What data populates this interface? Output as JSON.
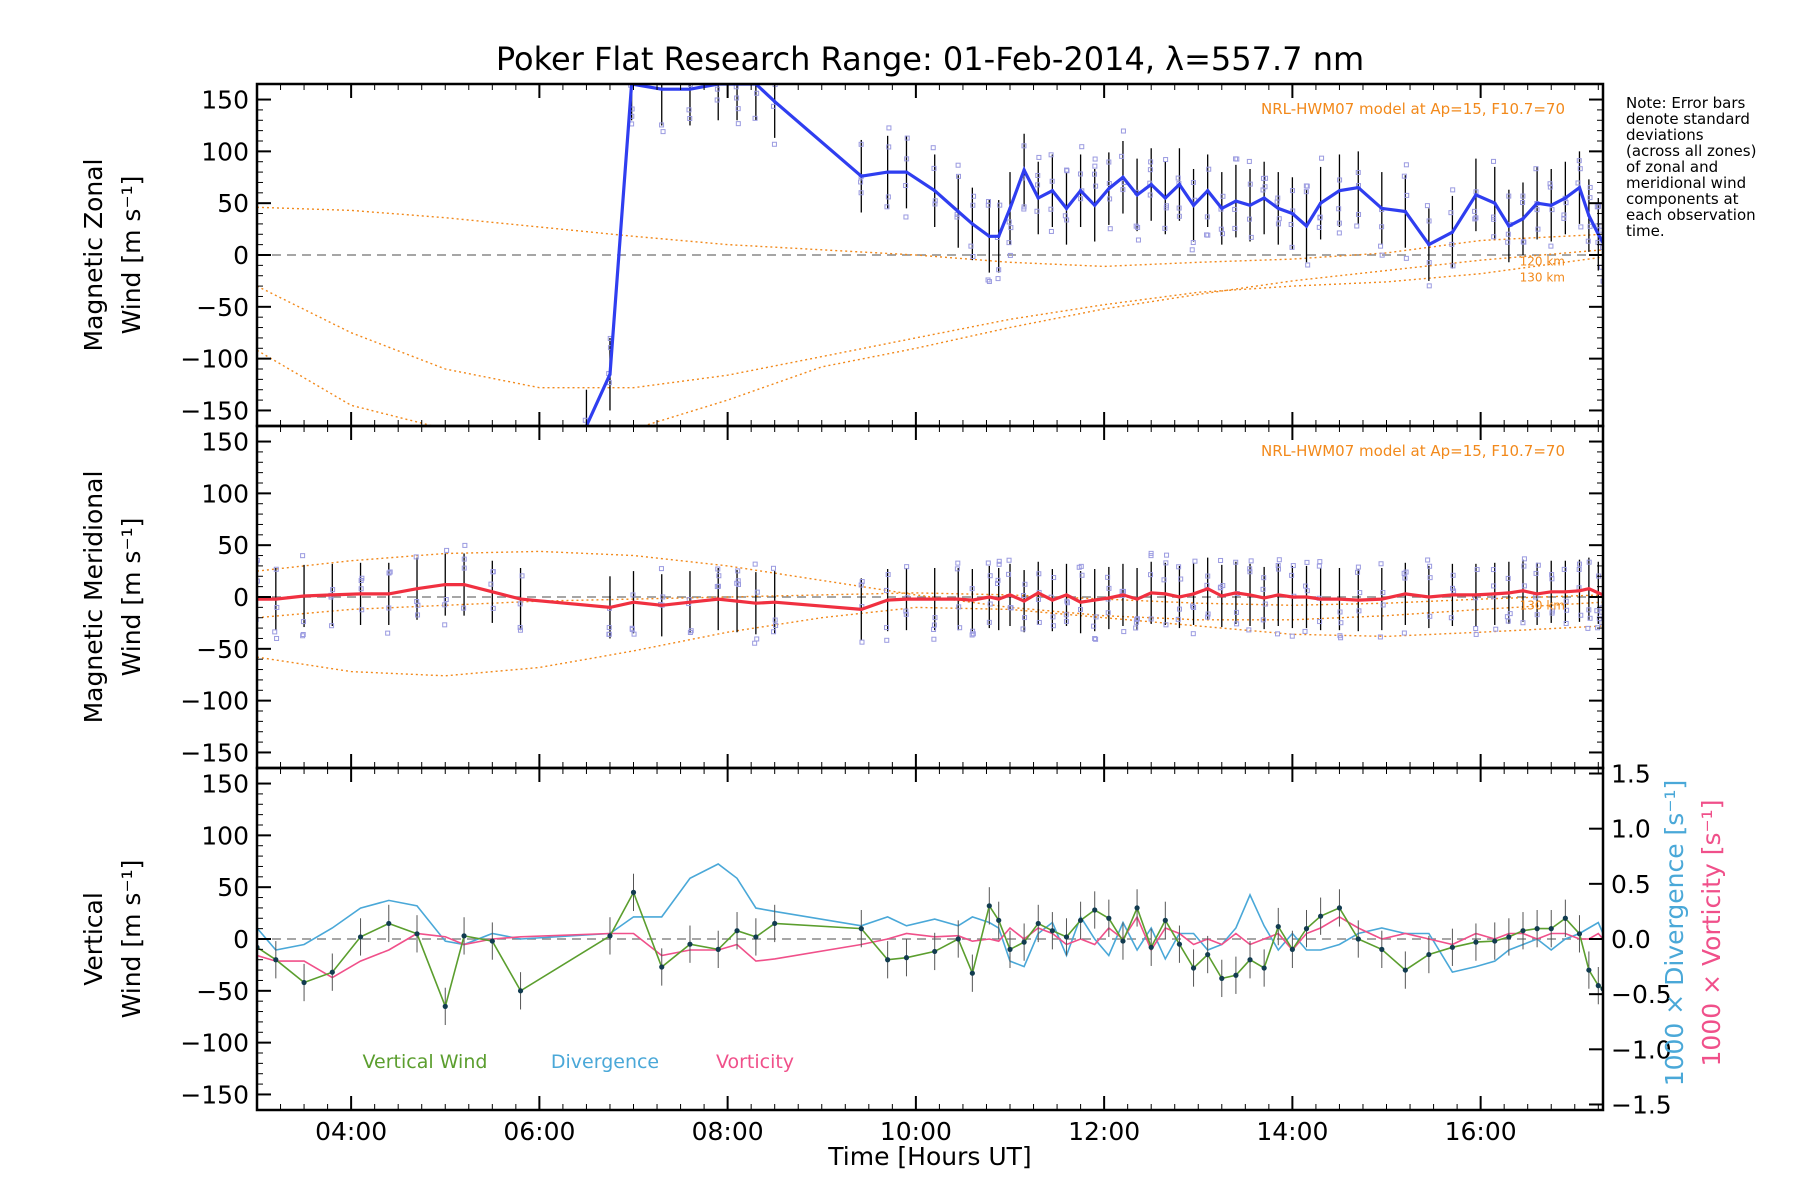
{
  "title": "Poker Flat Research Range: 01-Feb-2014, λ=557.7 nm",
  "note_lines": [
    "Note: Error bars",
    "denote standard",
    "deviations",
    "(across all zones)",
    "of zonal and",
    "meridional wind",
    "components at",
    "each observation",
    "time."
  ],
  "colors": {
    "zonal": "#2f3ef0",
    "meridional": "#f03040",
    "model": "#f2891b",
    "vertical": "#5b9e2e",
    "divergence": "#4aa8d8",
    "vorticity": "#f0508a",
    "scatter": "#9a9ae0",
    "errorbar": "#000000",
    "zero_line": "#888888"
  },
  "x_axis": {
    "label": "Time [Hours UT]",
    "range_hours": [
      3.0,
      17.3
    ],
    "ticks": [
      4,
      6,
      8,
      10,
      12,
      14,
      16
    ],
    "tick_labels": [
      "04:00",
      "06:00",
      "08:00",
      "10:00",
      "12:00",
      "14:00",
      "16:00"
    ]
  },
  "chart_data": [
    {
      "type": "line",
      "panel": "zonal",
      "ylabel_line1": "Magnetic Zonal",
      "ylabel_line2": "Wind [m s⁻¹]",
      "ylim": [
        -165,
        165
      ],
      "y_ticks": [
        -150,
        -100,
        -50,
        0,
        50,
        100,
        150
      ],
      "y_tick_labels": [
        "−150",
        "−100",
        "−50",
        "0",
        "50",
        "100",
        "150"
      ],
      "model_label": "NRL-HWM07 model at Ap=15, F10.7=70",
      "model_km_labels": [
        "120 km",
        "130 km"
      ],
      "series": [
        {
          "x": [
            6.5,
            6.75,
            6.98,
            7.3,
            7.6,
            7.9,
            8.1,
            8.3,
            8.5,
            9.42,
            9.7,
            9.9,
            10.2,
            10.45,
            10.6,
            10.78,
            10.88,
            11.0,
            11.15,
            11.3,
            11.45,
            11.6,
            11.75,
            11.9,
            12.05,
            12.2,
            12.35,
            12.5,
            12.65,
            12.8,
            12.95,
            13.1,
            13.25,
            13.4,
            13.55,
            13.7,
            13.85,
            14.0,
            14.15,
            14.3,
            14.5,
            14.7,
            14.95,
            15.2,
            15.45,
            15.7,
            15.95,
            16.15,
            16.3,
            16.45,
            16.6,
            16.75,
            16.9,
            17.05,
            17.15,
            17.25,
            17.3
          ],
          "y": [
            -165,
            -115,
            165,
            160,
            160,
            165,
            165,
            165,
            148,
            76,
            80,
            80,
            62,
            42,
            30,
            18,
            18,
            45,
            82,
            55,
            62,
            45,
            62,
            48,
            64,
            75,
            58,
            68,
            55,
            68,
            48,
            62,
            45,
            52,
            48,
            55,
            45,
            40,
            28,
            50,
            62,
            65,
            45,
            42,
            10,
            22,
            58,
            50,
            28,
            35,
            50,
            48,
            55,
            65,
            38,
            20,
            12
          ]
        }
      ],
      "model_curves": [
        {
          "x": [
            3,
            4,
            5,
            6,
            7,
            8,
            9,
            10,
            11,
            12,
            13,
            14,
            15,
            16,
            17.3
          ],
          "y": [
            46,
            43,
            36,
            27,
            18,
            10,
            5,
            0,
            -7,
            -11,
            -7,
            -4,
            2,
            14,
            20
          ]
        },
        {
          "x": [
            3,
            4,
            5,
            6,
            7,
            8,
            9,
            10,
            11,
            12,
            13,
            14,
            15,
            16,
            17.3
          ],
          "y": [
            -30,
            -75,
            -110,
            -128,
            -128,
            -116,
            -98,
            -80,
            -62,
            -48,
            -36,
            -30,
            -26,
            -18,
            -2
          ]
        },
        {
          "x": [
            3,
            4,
            5,
            6,
            7,
            8,
            9,
            10,
            11,
            12,
            13,
            14,
            15,
            16,
            17.3
          ],
          "y": [
            -92,
            -145,
            -168,
            -175,
            -168,
            -140,
            -108,
            -90,
            -70,
            -52,
            -38,
            -25,
            -15,
            -5,
            5
          ]
        }
      ]
    },
    {
      "type": "line",
      "panel": "meridional",
      "ylabel_line1": "Magnetic Meridional",
      "ylabel_line2": "Wind [m s⁻¹]",
      "ylim": [
        -165,
        165
      ],
      "y_ticks": [
        -150,
        -100,
        -50,
        0,
        50,
        100,
        150
      ],
      "y_tick_labels": [
        "−150",
        "−100",
        "−50",
        "0",
        "50",
        "100",
        "150"
      ],
      "model_label": "NRL-HWM07 model at Ap=15, F10.7=70",
      "model_km_labels": [
        "130 km"
      ],
      "series": [
        {
          "x": [
            3.0,
            3.2,
            3.5,
            3.8,
            4.1,
            4.4,
            4.7,
            5.0,
            5.2,
            5.5,
            5.8,
            6.75,
            7.0,
            7.3,
            7.6,
            7.9,
            8.1,
            8.3,
            8.5,
            9.42,
            9.7,
            9.9,
            10.2,
            10.45,
            10.6,
            10.78,
            10.88,
            11.0,
            11.15,
            11.3,
            11.45,
            11.6,
            11.75,
            11.9,
            12.05,
            12.2,
            12.35,
            12.5,
            12.65,
            12.8,
            12.95,
            13.1,
            13.25,
            13.4,
            13.55,
            13.7,
            13.85,
            14.0,
            14.15,
            14.3,
            14.5,
            14.7,
            14.95,
            15.2,
            15.45,
            15.7,
            15.95,
            16.15,
            16.3,
            16.45,
            16.6,
            16.75,
            16.9,
            17.05,
            17.15,
            17.25,
            17.3
          ],
          "y": [
            -2,
            -2,
            1,
            2,
            3,
            3,
            8,
            12,
            12,
            5,
            -2,
            -10,
            -5,
            -8,
            -5,
            -2,
            -4,
            -6,
            -5,
            -12,
            -3,
            -2,
            -2,
            -2,
            -3,
            0,
            -2,
            2,
            -4,
            4,
            -3,
            2,
            -5,
            -3,
            -1,
            2,
            -2,
            4,
            3,
            0,
            3,
            8,
            1,
            4,
            2,
            -1,
            2,
            0,
            0,
            -2,
            -2,
            -3,
            -2,
            3,
            0,
            2,
            2,
            3,
            4,
            6,
            3,
            5,
            5,
            6,
            8,
            4,
            2
          ]
        }
      ],
      "model_curves": [
        {
          "x": [
            3,
            4,
            5,
            6,
            7,
            8,
            9,
            10,
            11,
            12,
            13,
            14,
            15,
            16,
            17.3
          ],
          "y": [
            25,
            35,
            42,
            44,
            40,
            30,
            16,
            2,
            -10,
            -18,
            -22,
            -22,
            -18,
            -12,
            -5
          ]
        },
        {
          "x": [
            3,
            4,
            5,
            6,
            7,
            8,
            9,
            10,
            11,
            12,
            13,
            14,
            15,
            16,
            17.3
          ],
          "y": [
            -20,
            -12,
            -8,
            -4,
            -2,
            0,
            2,
            4,
            2,
            -2,
            -6,
            -8,
            -6,
            -2,
            2
          ]
        },
        {
          "x": [
            3,
            4,
            5,
            6,
            7,
            8,
            9,
            10,
            11,
            12,
            13,
            14,
            15,
            16,
            17.3
          ],
          "y": [
            -58,
            -72,
            -76,
            -68,
            -52,
            -34,
            -20,
            -10,
            -12,
            -20,
            -28,
            -36,
            -38,
            -34,
            -28
          ]
        }
      ]
    },
    {
      "type": "line",
      "panel": "vertical",
      "ylabel_line1": "Vertical",
      "ylabel_line2": "Wind [m s⁻¹]",
      "ylim": [
        -165,
        165
      ],
      "y_ticks": [
        -150,
        -100,
        -50,
        0,
        50,
        100,
        150
      ],
      "y_tick_labels": [
        "−150",
        "−100",
        "−50",
        "0",
        "50",
        "100",
        "150"
      ],
      "y2_label_div": "1000 × Divergence [s⁻¹]",
      "y2_label_vort": "1000 × Vorticity [s⁻¹]",
      "y2lim": [
        -1.55,
        1.55
      ],
      "y2_ticks": [
        -1.5,
        -1.0,
        -0.5,
        0.0,
        0.5,
        1.0,
        1.5
      ],
      "y2_tick_labels": [
        "−1.5",
        "−1.0",
        "−0.5",
        "0.0",
        "0.5",
        "1.0",
        "1.5"
      ],
      "legend": [
        "Vertical Wind",
        "Divergence",
        "Vorticity"
      ],
      "series": [
        {
          "name": "Vertical Wind",
          "x": [
            3.0,
            3.2,
            3.5,
            3.8,
            4.1,
            4.4,
            4.7,
            5.0,
            5.2,
            5.5,
            5.8,
            6.75,
            7.0,
            7.3,
            7.6,
            7.9,
            8.1,
            8.3,
            8.5,
            9.42,
            9.7,
            9.9,
            10.2,
            10.45,
            10.6,
            10.78,
            10.88,
            11.0,
            11.15,
            11.3,
            11.45,
            11.6,
            11.75,
            11.9,
            12.05,
            12.2,
            12.35,
            12.5,
            12.65,
            12.8,
            12.95,
            13.1,
            13.25,
            13.4,
            13.55,
            13.7,
            13.85,
            14.0,
            14.15,
            14.3,
            14.5,
            14.7,
            14.95,
            15.2,
            15.45,
            15.7,
            15.95,
            16.15,
            16.3,
            16.45,
            16.6,
            16.75,
            16.9,
            17.05,
            17.15,
            17.25,
            17.3
          ],
          "y": [
            -8,
            -20,
            -42,
            -32,
            2,
            15,
            5,
            -65,
            3,
            -2,
            -50,
            3,
            45,
            -27,
            -5,
            -10,
            8,
            2,
            15,
            10,
            -20,
            -18,
            -12,
            0,
            -33,
            32,
            18,
            -10,
            -3,
            15,
            8,
            2,
            18,
            28,
            20,
            -2,
            30,
            -8,
            18,
            -5,
            -28,
            -15,
            -38,
            -35,
            -20,
            -28,
            12,
            -10,
            10,
            22,
            30,
            0,
            -10,
            -30,
            -15,
            -8,
            -3,
            -2,
            2,
            8,
            10,
            10,
            20,
            5,
            -30,
            -45,
            -48
          ]
        },
        {
          "name": "Divergence",
          "x": [
            3.0,
            3.2,
            3.5,
            3.8,
            4.1,
            4.4,
            4.7,
            5.0,
            5.2,
            5.5,
            5.8,
            6.75,
            7.0,
            7.3,
            7.6,
            7.9,
            8.1,
            8.3,
            8.5,
            9.42,
            9.7,
            9.9,
            10.2,
            10.45,
            10.6,
            10.78,
            10.88,
            11.0,
            11.15,
            11.3,
            11.45,
            11.6,
            11.75,
            11.9,
            12.05,
            12.2,
            12.35,
            12.5,
            12.65,
            12.8,
            12.95,
            13.1,
            13.25,
            13.4,
            13.55,
            13.7,
            13.85,
            14.0,
            14.15,
            14.3,
            14.5,
            14.7,
            14.95,
            15.2,
            15.45,
            15.7,
            15.95,
            16.15,
            16.3,
            16.45,
            16.6,
            16.75,
            16.9,
            17.05,
            17.15,
            17.25,
            17.3
          ],
          "y": [
            0.1,
            -0.1,
            -0.05,
            0.1,
            0.28,
            0.35,
            0.3,
            -0.02,
            -0.05,
            0.05,
            0.0,
            0.05,
            0.2,
            0.2,
            0.55,
            0.68,
            0.55,
            0.28,
            0.25,
            0.12,
            0.2,
            0.12,
            0.18,
            0.12,
            0.2,
            0.15,
            0.1,
            -0.2,
            -0.25,
            0.05,
            0.15,
            -0.15,
            0.2,
            0.0,
            -0.15,
            0.15,
            -0.1,
            0.1,
            -0.18,
            0.05,
            0.05,
            -0.1,
            -0.05,
            0.1,
            0.4,
            0.12,
            -0.1,
            0.05,
            -0.1,
            -0.1,
            -0.05,
            0.05,
            0.1,
            0.05,
            0.05,
            -0.3,
            -0.25,
            -0.2,
            -0.1,
            -0.05,
            0.0,
            -0.1,
            0.0,
            0.05,
            0.1,
            0.15,
            0.05
          ]
        },
        {
          "name": "Vorticity",
          "x": [
            3.0,
            3.2,
            3.5,
            3.8,
            4.1,
            4.4,
            4.7,
            5.0,
            5.2,
            5.5,
            5.8,
            6.75,
            7.0,
            7.3,
            7.6,
            7.9,
            8.1,
            8.3,
            8.5,
            9.42,
            9.7,
            9.9,
            10.2,
            10.45,
            10.6,
            10.78,
            10.88,
            11.0,
            11.15,
            11.3,
            11.45,
            11.6,
            11.75,
            11.9,
            12.05,
            12.2,
            12.35,
            12.5,
            12.65,
            12.8,
            12.95,
            13.1,
            13.25,
            13.4,
            13.55,
            13.7,
            13.85,
            14.0,
            14.15,
            14.3,
            14.5,
            14.7,
            14.95,
            15.2,
            15.45,
            15.7,
            15.95,
            16.15,
            16.3,
            16.45,
            16.6,
            16.75,
            16.9,
            17.05,
            17.15,
            17.25,
            17.3
          ],
          "y": [
            -0.15,
            -0.2,
            -0.2,
            -0.35,
            -0.2,
            -0.1,
            0.05,
            0.02,
            -0.05,
            0.0,
            0.02,
            0.05,
            0.05,
            -0.15,
            -0.1,
            -0.1,
            -0.05,
            -0.2,
            -0.18,
            -0.05,
            0.0,
            0.05,
            0.02,
            0.03,
            -0.02,
            0.0,
            -0.02,
            0.1,
            0.0,
            0.1,
            0.05,
            -0.05,
            0.0,
            -0.05,
            0.1,
            0.0,
            0.2,
            -0.1,
            0.1,
            0.05,
            -0.05,
            0.0,
            -0.05,
            0.05,
            -0.05,
            0.0,
            0.05,
            -0.1,
            0.05,
            0.1,
            0.2,
            0.1,
            0.0,
            0.05,
            0.0,
            -0.05,
            0.05,
            0.0,
            0.05,
            0.05,
            0.0,
            0.05,
            0.05,
            0.0,
            0.0,
            0.05,
            0.0
          ]
        }
      ]
    }
  ]
}
